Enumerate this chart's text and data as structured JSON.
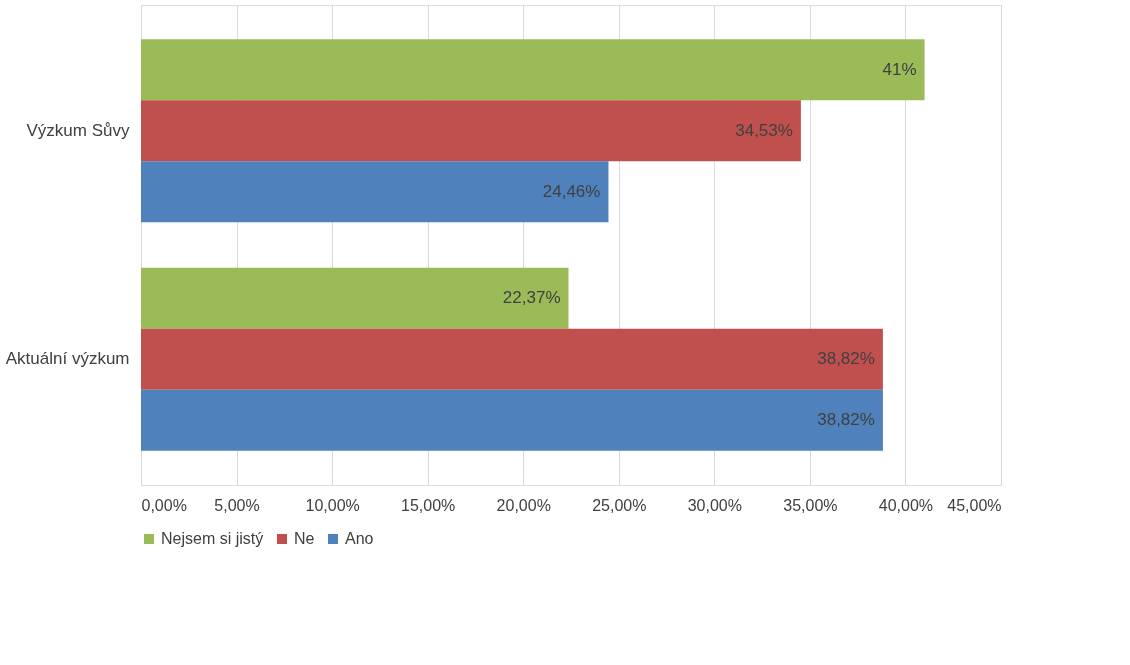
{
  "chart_data": {
    "type": "bar",
    "orientation": "horizontal",
    "categories": [
      "Výzkum Sůvy",
      "Aktuální výzkum"
    ],
    "series": [
      {
        "name": "Nejsem si jistý",
        "color": "#9bbb59",
        "values": [
          41,
          22.37
        ],
        "value_labels": [
          "41%",
          "22,37%"
        ]
      },
      {
        "name": "Ne",
        "color": "#c0504d",
        "values": [
          34.53,
          38.82
        ],
        "value_labels": [
          "34,53%",
          "38,82%"
        ]
      },
      {
        "name": "Ano",
        "color": "#4f81bd",
        "values": [
          24.46,
          38.82
        ],
        "value_labels": [
          "24,46%",
          "38,82%"
        ]
      }
    ],
    "xlim": [
      0,
      45
    ],
    "xticks": [
      {
        "value": 0,
        "label": "0,00%"
      },
      {
        "value": 5,
        "label": "5,00%"
      },
      {
        "value": 10,
        "label": "10,00%"
      },
      {
        "value": 15,
        "label": "15,00%"
      },
      {
        "value": 20,
        "label": "20,00%"
      },
      {
        "value": 25,
        "label": "25,00%"
      },
      {
        "value": 30,
        "label": "30,00%"
      },
      {
        "value": 35,
        "label": "35,00%"
      },
      {
        "value": 40,
        "label": "40,00%"
      },
      {
        "value": 45,
        "label": "45,00%"
      }
    ],
    "grid": "x",
    "legend": "bottom"
  }
}
